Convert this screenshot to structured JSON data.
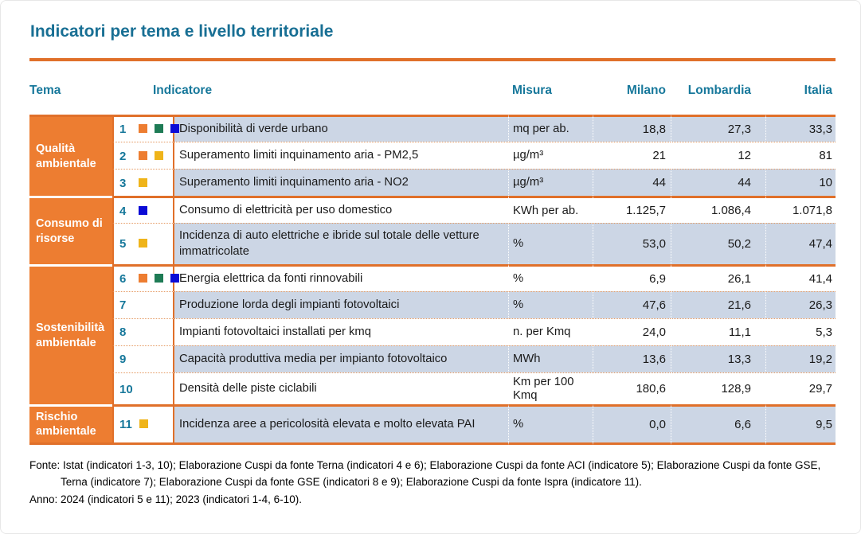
{
  "page": {
    "title": "Indicatori per tema e livello territoriale"
  },
  "colors": {
    "accent_orange": "#ED7D31",
    "line_orange": "#E0702A",
    "header_teal": "#17789B",
    "title_teal": "#186F94",
    "row_band_blue": "#CCD6E5"
  },
  "table": {
    "headers": {
      "tema": "Tema",
      "indicatore": "Indicatore",
      "misura": "Misura",
      "milano": "Milano",
      "lombardia": "Lombardia",
      "italia": "Italia"
    },
    "square_colors": {
      "orange": "#ED7D31",
      "green": "#1E7B55",
      "blue": "#0B0BD6",
      "yellow": "#EFB41A"
    },
    "groups": [
      {
        "tema": "Qualità ambientale",
        "rows": [
          {
            "num": "1",
            "squares": [
              "orange",
              "green",
              "blue"
            ],
            "indicatore": "Disponibilità di verde urbano",
            "misura": "mq per ab.",
            "milano": "18,8",
            "lombardia": "27,3",
            "italia": "33,3"
          },
          {
            "num": "2",
            "squares": [
              "orange",
              "yellow"
            ],
            "indicatore": "Superamento limiti inquinamento aria - PM2,5",
            "misura": "µg/m³",
            "milano": "21",
            "lombardia": "12",
            "italia": "81"
          },
          {
            "num": "3",
            "squares": [
              "yellow"
            ],
            "indicatore": "Superamento limiti inquinamento aria - NO2",
            "misura": "µg/m³",
            "milano": "44",
            "lombardia": "44",
            "italia": "10"
          }
        ]
      },
      {
        "tema": "Consumo di risorse",
        "rows": [
          {
            "num": "4",
            "squares": [
              "blue"
            ],
            "indicatore": "Consumo di elettricità per uso domestico",
            "misura": "KWh per ab.",
            "milano": "1.125,7",
            "lombardia": "1.086,4",
            "italia": "1.071,8"
          },
          {
            "num": "5",
            "squares": [
              "yellow"
            ],
            "indicatore": "Incidenza di auto elettriche e ibride sul totale delle vetture immatricolate",
            "misura": "%",
            "milano": "53,0",
            "lombardia": "50,2",
            "italia": "47,4"
          }
        ]
      },
      {
        "tema": "Sostenibilità ambientale",
        "rows": [
          {
            "num": "6",
            "squares": [
              "orange",
              "green",
              "blue"
            ],
            "indicatore": "Energia elettrica da fonti rinnovabili",
            "misura": "%",
            "milano": "6,9",
            "lombardia": "26,1",
            "italia": "41,4"
          },
          {
            "num": "7",
            "squares": [],
            "indicatore": "Produzione lorda degli impianti fotovoltaici",
            "misura": "%",
            "milano": "47,6",
            "lombardia": "21,6",
            "italia": "26,3"
          },
          {
            "num": "8",
            "squares": [],
            "indicatore": "Impianti fotovoltaici installati per kmq",
            "misura": "n. per Kmq",
            "milano": "24,0",
            "lombardia": "11,1",
            "italia": "5,3"
          },
          {
            "num": "9",
            "squares": [],
            "indicatore": "Capacità produttiva media per impianto fotovoltaico",
            "misura": "MWh",
            "milano": "13,6",
            "lombardia": "13,3",
            "italia": "19,2"
          },
          {
            "num": "10",
            "squares": [],
            "indicatore": "Densità delle piste ciclabili",
            "misura": "Km per 100 Kmq",
            "milano": "180,6",
            "lombardia": "128,9",
            "italia": "29,7"
          }
        ]
      },
      {
        "tema": "Rischio ambientale",
        "rows": [
          {
            "num": "11",
            "squares": [
              "yellow"
            ],
            "indicatore": "Incidenza aree a pericolosità elevata e molto elevata PAI",
            "misura": "%",
            "milano": "0,0",
            "lombardia": "6,6",
            "italia": "9,5"
          }
        ]
      }
    ]
  },
  "footer": {
    "fonte": "Fonte: Istat (indicatori 1-3, 10); Elaborazione Cuspi da fonte Terna (indicatori 4 e 6); Elaborazione Cuspi da fonte ACI (indicatore 5); Elaborazione Cuspi da fonte GSE, Terna (indicatore 7); Elaborazione Cuspi da fonte GSE (indicatori 8 e 9); Elaborazione Cuspi da fonte Ispra (indicatore 11).",
    "anno": "Anno: 2024 (indicatori 5 e 11); 2023 (indicatori 1-4, 6-10)."
  }
}
